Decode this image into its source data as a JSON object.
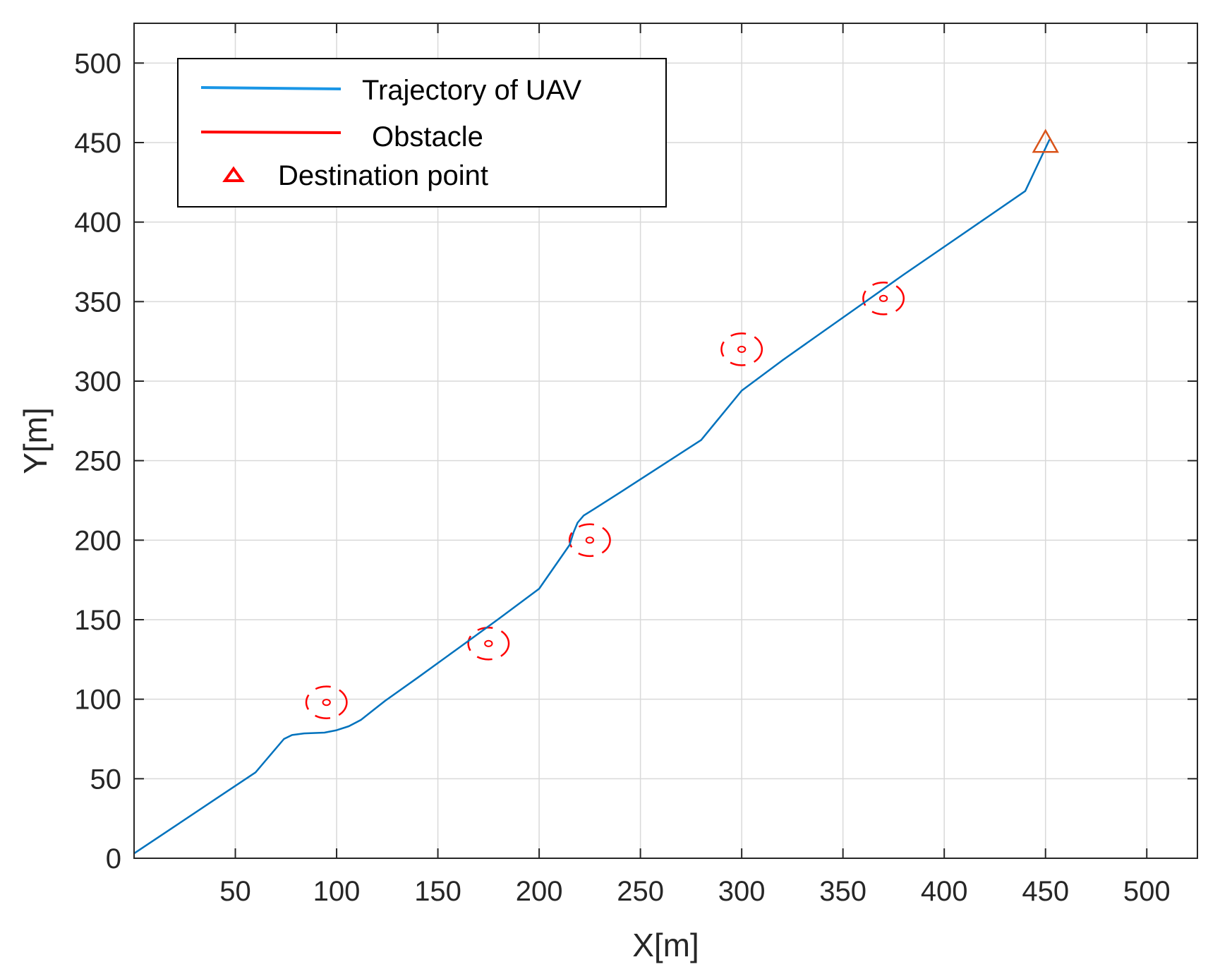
{
  "chart_data": {
    "type": "line",
    "title": "",
    "xlabel": "X[m]",
    "ylabel": "Y[m]",
    "xlim": [
      0,
      525
    ],
    "ylim": [
      0,
      525
    ],
    "xticks": [
      50,
      100,
      150,
      200,
      250,
      300,
      350,
      400,
      450,
      500
    ],
    "yticks": [
      0,
      50,
      100,
      150,
      200,
      250,
      300,
      350,
      400,
      450,
      500
    ],
    "grid": true,
    "legend_position": "top-left",
    "legend": [
      {
        "label": "Trajectory of UAV",
        "color": "#1a96e6",
        "marker": "line"
      },
      {
        "label": "Obstacle",
        "color": "#ff0000",
        "marker": "line"
      },
      {
        "label": "Destination point",
        "color": "#ff0000",
        "marker": "triangle"
      }
    ],
    "series": [
      {
        "name": "Trajectory of UAV",
        "color": "#0072bd",
        "points": [
          [
            0,
            3
          ],
          [
            20,
            20
          ],
          [
            40,
            37
          ],
          [
            60,
            54
          ],
          [
            74,
            75
          ],
          [
            78,
            77.5
          ],
          [
            84,
            78.5
          ],
          [
            94,
            79
          ],
          [
            100,
            80.5
          ],
          [
            106,
            83
          ],
          [
            112,
            87
          ],
          [
            118,
            93
          ],
          [
            124,
            99
          ],
          [
            140,
            113.5
          ],
          [
            160,
            132
          ],
          [
            180,
            150.5
          ],
          [
            200,
            169.5
          ],
          [
            215,
            197
          ],
          [
            217,
            205
          ],
          [
            219,
            211
          ],
          [
            222,
            215.5
          ],
          [
            227,
            219.5
          ],
          [
            240,
            230
          ],
          [
            260,
            246.5
          ],
          [
            280,
            263
          ],
          [
            300,
            294
          ],
          [
            320,
            313
          ],
          [
            340,
            331
          ],
          [
            360,
            349
          ],
          [
            380,
            367
          ],
          [
            400,
            384.5
          ],
          [
            420,
            402
          ],
          [
            440,
            419.5
          ],
          [
            452,
            452
          ]
        ]
      }
    ],
    "obstacles": [
      {
        "x": 95,
        "y": 98,
        "radius": 10
      },
      {
        "x": 175,
        "y": 135,
        "radius": 10
      },
      {
        "x": 225,
        "y": 200,
        "radius": 10
      },
      {
        "x": 300,
        "y": 320,
        "radius": 10
      },
      {
        "x": 370,
        "y": 352,
        "radius": 10
      }
    ],
    "destination": {
      "x": 450,
      "y": 450,
      "color": "#d95319"
    }
  }
}
